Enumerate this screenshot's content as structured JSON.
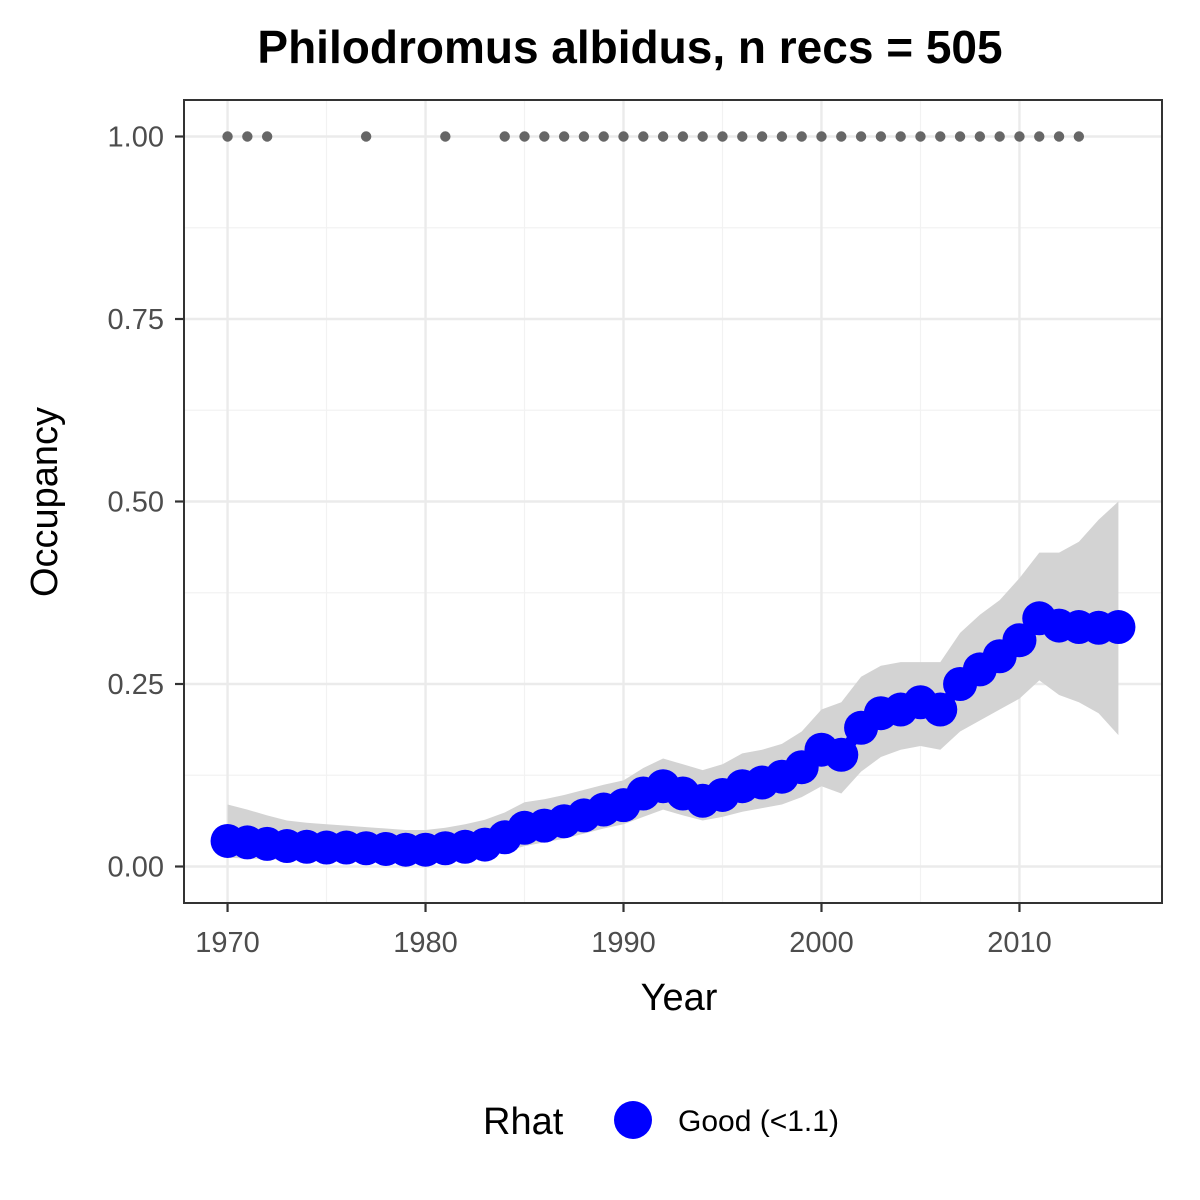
{
  "chart_data": {
    "type": "line",
    "title": "Philodromus albidus, n recs = 505",
    "xlabel": "Year",
    "ylabel": "Occupancy",
    "xlim": [
      1967.8,
      2017.2
    ],
    "ylim": [
      -0.05,
      1.05
    ],
    "x_ticks": [
      1970,
      1980,
      1990,
      2000,
      2010
    ],
    "x_tick_labels": [
      "1970",
      "1980",
      "1990",
      "2000",
      "2010"
    ],
    "y_ticks": [
      0,
      0.25,
      0.5,
      0.75,
      1
    ],
    "y_tick_labels": [
      "0.00",
      "0.25",
      "0.50",
      "0.75",
      "1.00"
    ],
    "grid": true,
    "legend_position": "bottom",
    "legend_title": "Rhat",
    "series": [
      {
        "name": "Good (<1.1)",
        "color": "#0000ff",
        "x": [
          1970,
          1971,
          1972,
          1973,
          1974,
          1975,
          1976,
          1977,
          1978,
          1979,
          1980,
          1981,
          1982,
          1983,
          1984,
          1985,
          1986,
          1987,
          1988,
          1989,
          1990,
          1991,
          1992,
          1993,
          1994,
          1995,
          1996,
          1997,
          1998,
          1999,
          2000,
          2001,
          2002,
          2003,
          2004,
          2005,
          2006,
          2007,
          2008,
          2009,
          2010,
          2011,
          2012,
          2013,
          2014,
          2015
        ],
        "mean": [
          0.035,
          0.033,
          0.031,
          0.028,
          0.027,
          0.026,
          0.026,
          0.025,
          0.024,
          0.023,
          0.023,
          0.025,
          0.027,
          0.03,
          0.04,
          0.053,
          0.056,
          0.062,
          0.07,
          0.078,
          0.084,
          0.1,
          0.11,
          0.1,
          0.09,
          0.098,
          0.11,
          0.115,
          0.123,
          0.136,
          0.16,
          0.153,
          0.19,
          0.21,
          0.215,
          0.225,
          0.215,
          0.25,
          0.27,
          0.288,
          0.31,
          0.34,
          0.33,
          0.328,
          0.327,
          0.328
        ],
        "lower": [
          0.012,
          0.011,
          0.01,
          0.009,
          0.009,
          0.009,
          0.009,
          0.009,
          0.008,
          0.008,
          0.008,
          0.01,
          0.011,
          0.014,
          0.02,
          0.028,
          0.033,
          0.038,
          0.045,
          0.052,
          0.058,
          0.068,
          0.078,
          0.07,
          0.063,
          0.068,
          0.075,
          0.08,
          0.085,
          0.095,
          0.11,
          0.1,
          0.13,
          0.15,
          0.16,
          0.165,
          0.16,
          0.185,
          0.2,
          0.215,
          0.23,
          0.255,
          0.235,
          0.225,
          0.21,
          0.18
        ],
        "upper": [
          0.085,
          0.078,
          0.07,
          0.063,
          0.06,
          0.058,
          0.056,
          0.054,
          0.052,
          0.05,
          0.05,
          0.053,
          0.058,
          0.064,
          0.074,
          0.088,
          0.092,
          0.098,
          0.105,
          0.112,
          0.118,
          0.135,
          0.148,
          0.14,
          0.132,
          0.14,
          0.155,
          0.16,
          0.168,
          0.185,
          0.215,
          0.225,
          0.26,
          0.275,
          0.28,
          0.28,
          0.28,
          0.32,
          0.345,
          0.365,
          0.395,
          0.43,
          0.43,
          0.445,
          0.475,
          0.5
        ]
      }
    ],
    "record_years": [
      1970,
      1971,
      1972,
      1977,
      1981,
      1984,
      1985,
      1986,
      1987,
      1988,
      1989,
      1990,
      1991,
      1992,
      1993,
      1994,
      1995,
      1996,
      1997,
      1998,
      1999,
      2000,
      2001,
      2002,
      2003,
      2004,
      2005,
      2006,
      2007,
      2008,
      2009,
      2010,
      2011,
      2012,
      2013
    ],
    "record_value": 1,
    "record_color": "#666666",
    "ribbon_color": "#d3d3d3"
  }
}
